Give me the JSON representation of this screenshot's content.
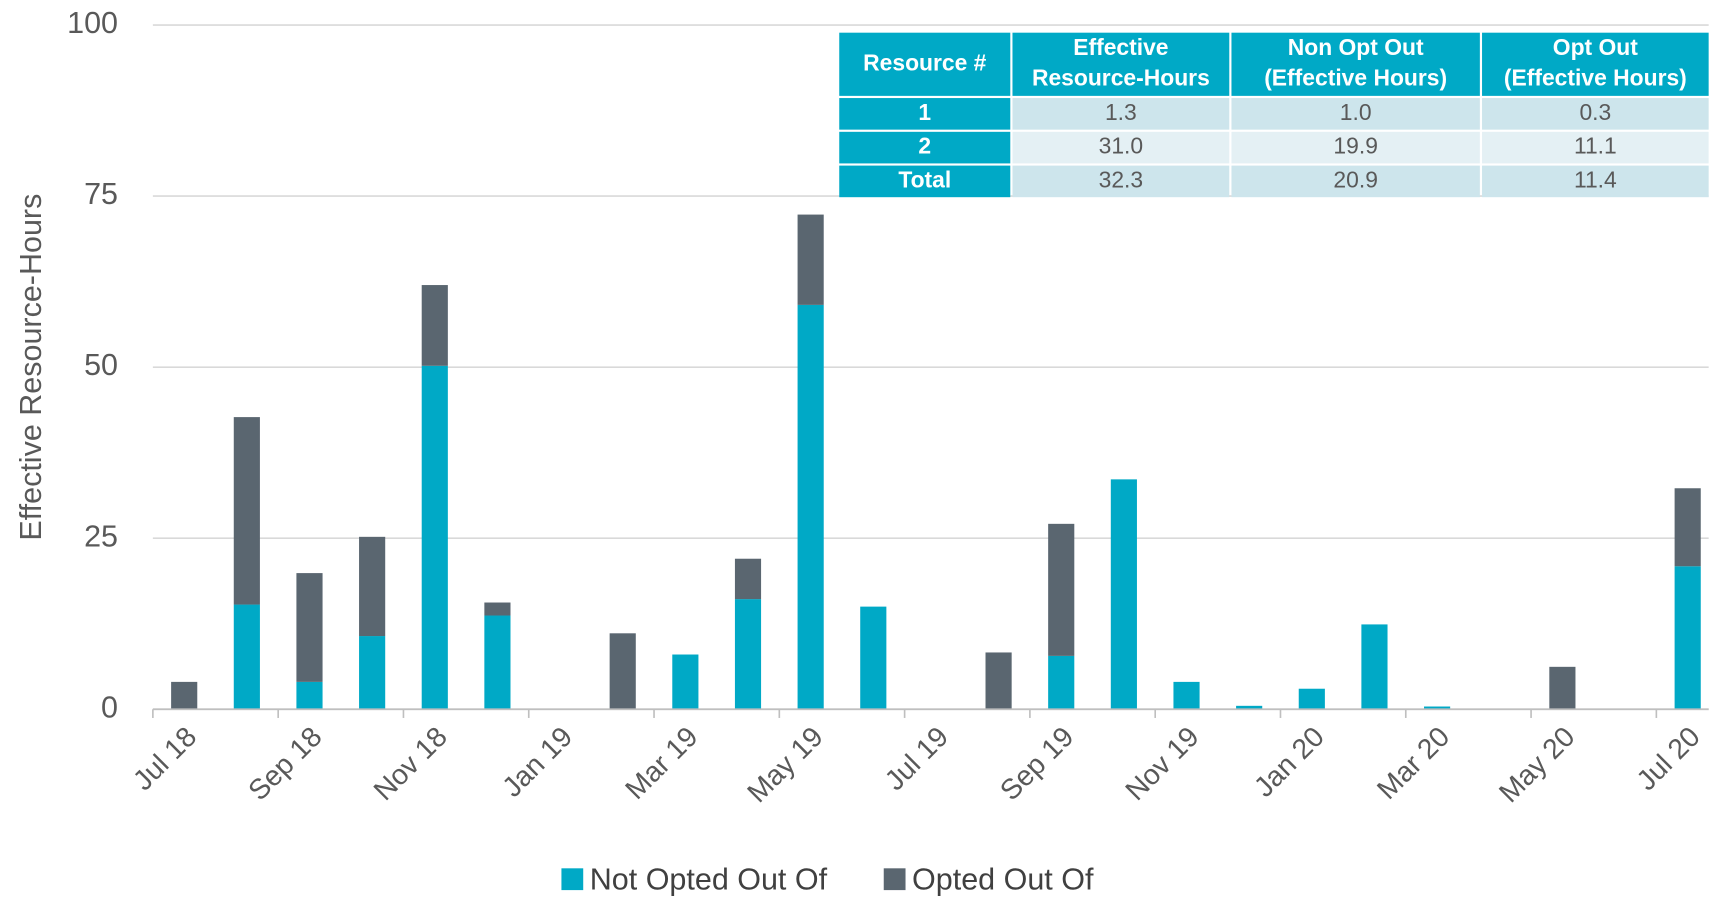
{
  "chart_data": {
    "type": "stacked_bar",
    "y_label": "Effective Resource-Hours",
    "categories": [
      "Jul 18",
      null,
      "Sep 18",
      null,
      "Nov 18",
      null,
      "Jan 19",
      null,
      "Mar 19",
      null,
      "May 19",
      null,
      "Jul 19",
      null,
      "Sep 19",
      null,
      "Nov 19",
      null,
      "Jan 20",
      null,
      "Mar 20",
      null,
      "May 20",
      null,
      "Jul 20"
    ],
    "series": [
      {
        "name": "Not Opted Out Of",
        "color": "#00a9c6",
        "values": [
          0,
          15.3,
          4.0,
          10.7,
          50.2,
          13.7,
          0,
          0,
          8.0,
          16.1,
          59.1,
          15.0,
          0,
          0,
          7.8,
          33.6,
          4.0,
          0.5,
          3.0,
          12.4,
          0.4,
          0,
          0,
          0,
          20.9
        ]
      },
      {
        "name": "Opted Out Of",
        "color": "#5a6670",
        "values": [
          4.0,
          27.4,
          15.9,
          14.5,
          11.8,
          1.9,
          0,
          11.1,
          0,
          5.9,
          13.2,
          0,
          0,
          8.3,
          19.3,
          0,
          0,
          0,
          0,
          0,
          0,
          0,
          6.2,
          0,
          11.4
        ]
      }
    ],
    "ylim": [
      0,
      100
    ],
    "yticks": [
      0,
      25,
      50,
      75,
      100
    ],
    "grid": true,
    "legend": "bottom"
  },
  "table": {
    "header": [
      [
        "Resource #"
      ],
      [
        "Effective",
        "Resource-Hours"
      ],
      [
        "Non Opt Out",
        "(Effective Hours)"
      ],
      [
        "Opt Out",
        "(Effective Hours)"
      ]
    ],
    "rows": [
      [
        "1",
        "1.3",
        "1.0",
        "0.3"
      ],
      [
        "2",
        "31.0",
        "19.9",
        "11.1"
      ],
      [
        "Total",
        "32.3",
        "20.9",
        "11.4"
      ]
    ]
  }
}
